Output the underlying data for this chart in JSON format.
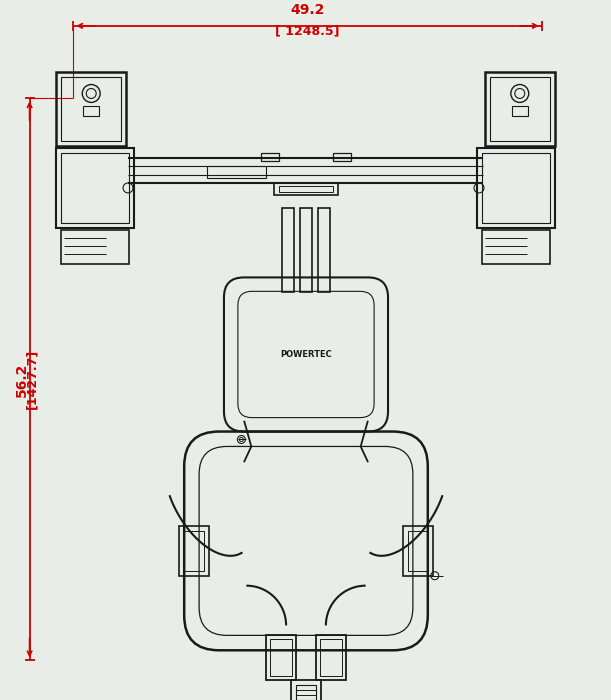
{
  "bg_color": "#e8ede8",
  "line_color": "#1a1a1a",
  "dim_color": "#cc0000",
  "horiz_dim_label": "49.2",
  "horiz_dim_sublabel": "[ 1248.5]",
  "vert_dim_label": "56.2",
  "vert_dim_sublabel": "[1427.7]",
  "figsize": [
    6.11,
    7.0
  ],
  "dpi": 100
}
